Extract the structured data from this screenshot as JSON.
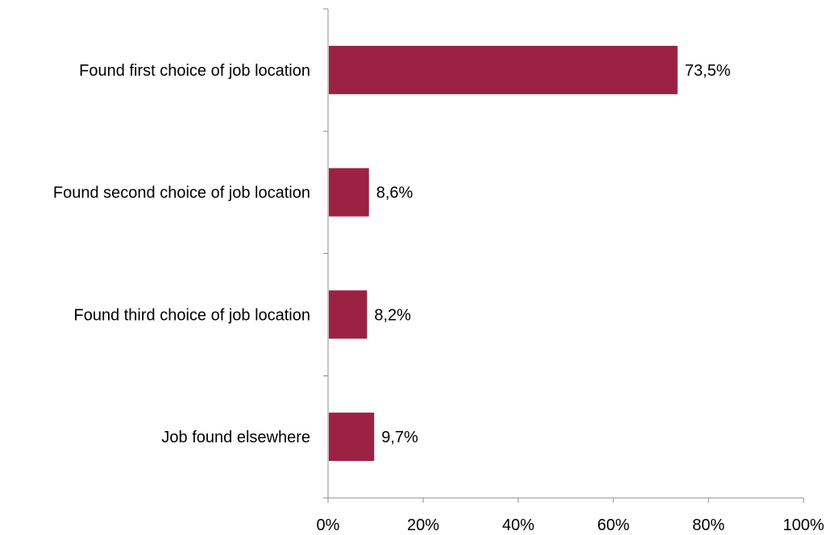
{
  "chart_data": {
    "type": "bar",
    "orientation": "horizontal",
    "categories": [
      "Found first choice of job location",
      "Found second choice of job location",
      "Found third choice of job location",
      "Job found elsewhere"
    ],
    "values": [
      73.5,
      8.6,
      8.2,
      9.7
    ],
    "data_labels": [
      "73,5%",
      "8,6%",
      "8,2%",
      "9,7%"
    ],
    "x_ticks": [
      0,
      20,
      40,
      60,
      80,
      100
    ],
    "x_tick_labels": [
      "0%",
      "20%",
      "40%",
      "60%",
      "80%",
      "100%"
    ],
    "xlim": [
      0,
      100
    ],
    "grid": false,
    "legend": "none",
    "title": "",
    "xlabel": "",
    "ylabel": "",
    "bar_color": "#9b2242"
  }
}
